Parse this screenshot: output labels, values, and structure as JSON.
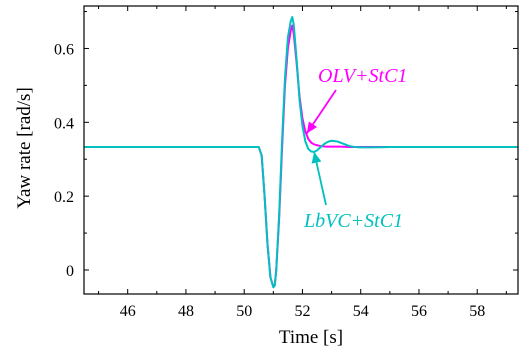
{
  "chart_data": {
    "type": "line",
    "title": "",
    "xlabel": "Time [s]",
    "ylabel": "Yaw rate [rad/s]",
    "xlim": [
      44.5,
      59.4
    ],
    "ylim": [
      -0.065,
      0.715
    ],
    "xticks": [
      46,
      48,
      50,
      52,
      54,
      56,
      58
    ],
    "yticks": [
      0,
      0.2,
      0.4,
      0.6
    ],
    "grid": false,
    "legend": "none",
    "series": [
      {
        "name": "OLV+StC1",
        "color": "#ff00ff",
        "x": [
          44.5,
          50.5,
          50.6,
          50.7,
          50.8,
          50.9,
          51.0,
          51.05,
          51.1,
          51.2,
          51.3,
          51.4,
          51.5,
          51.6,
          51.65,
          51.7,
          51.8,
          51.9,
          52.0,
          52.1,
          52.2,
          52.3,
          52.4,
          52.5,
          52.6,
          52.8,
          53.0,
          53.3,
          53.6,
          54.0,
          55.0,
          59.4
        ],
        "y": [
          0.333,
          0.333,
          0.31,
          0.2,
          0.07,
          -0.02,
          -0.045,
          -0.04,
          0.0,
          0.14,
          0.33,
          0.5,
          0.6,
          0.65,
          0.662,
          0.64,
          0.56,
          0.47,
          0.41,
          0.375,
          0.355,
          0.345,
          0.34,
          0.338,
          0.336,
          0.334,
          0.334,
          0.334,
          0.333,
          0.333,
          0.333,
          0.333
        ]
      },
      {
        "name": "LbVC+StC1",
        "color": "#00c0c0",
        "x": [
          44.5,
          50.5,
          50.6,
          50.7,
          50.8,
          50.9,
          51.0,
          51.05,
          51.1,
          51.2,
          51.3,
          51.4,
          51.5,
          51.6,
          51.65,
          51.7,
          51.8,
          51.9,
          52.0,
          52.1,
          52.2,
          52.3,
          52.4,
          52.5,
          52.6,
          52.7,
          52.8,
          52.9,
          53.0,
          53.2,
          53.4,
          53.6,
          53.8,
          54.0,
          54.3,
          55.0,
          59.4
        ],
        "y": [
          0.333,
          0.333,
          0.31,
          0.2,
          0.07,
          -0.02,
          -0.047,
          -0.042,
          0.0,
          0.15,
          0.35,
          0.52,
          0.63,
          0.675,
          0.685,
          0.665,
          0.57,
          0.46,
          0.39,
          0.348,
          0.328,
          0.321,
          0.32,
          0.324,
          0.331,
          0.338,
          0.344,
          0.348,
          0.35,
          0.348,
          0.342,
          0.336,
          0.333,
          0.332,
          0.332,
          0.333,
          0.333
        ]
      }
    ],
    "annotations": [
      {
        "text": "OLV+StC1",
        "color": "#ff00ff",
        "point_to": [
          52.15,
          0.37
        ]
      },
      {
        "text": "LbVC+StC1",
        "color": "#00c0c0",
        "point_to": [
          52.4,
          0.32
        ]
      }
    ]
  }
}
